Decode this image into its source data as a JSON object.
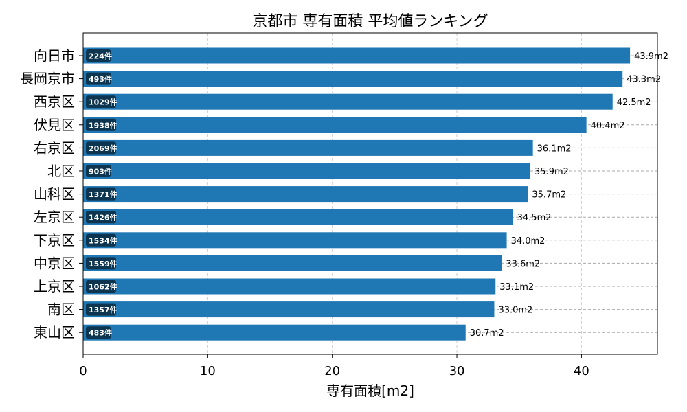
{
  "chart_data": {
    "type": "bar",
    "orientation": "horizontal",
    "title": "京都市 専有面積 平均値ランキング",
    "xlabel": "専有面積[m2]",
    "ylabel": "",
    "xlim": [
      0,
      46.1
    ],
    "xticks": [
      "0",
      "10",
      "20",
      "30",
      "40"
    ],
    "grid": true,
    "bar_color": "#1f77b4",
    "count_badge_color": "#0d3550",
    "categories": [
      "向日市",
      "長岡京市",
      "西京区",
      "伏見区",
      "右京区",
      "北区",
      "山科区",
      "左京区",
      "下京区",
      "中京区",
      "上京区",
      "南区",
      "東山区"
    ],
    "values": [
      43.9,
      43.3,
      42.5,
      40.4,
      36.1,
      35.9,
      35.7,
      34.5,
      34.0,
      33.6,
      33.1,
      33.0,
      30.7
    ],
    "value_labels": [
      "43.9m2",
      "43.3m2",
      "42.5m2",
      "40.4m2",
      "36.1m2",
      "35.9m2",
      "35.7m2",
      "34.5m2",
      "34.0m2",
      "33.6m2",
      "33.1m2",
      "33.0m2",
      "30.7m2"
    ],
    "counts": [
      "224件",
      "493件",
      "1029件",
      "1938件",
      "2069件",
      "903件",
      "1371件",
      "1426件",
      "1534件",
      "1559件",
      "1062件",
      "1357件",
      "483件"
    ]
  }
}
